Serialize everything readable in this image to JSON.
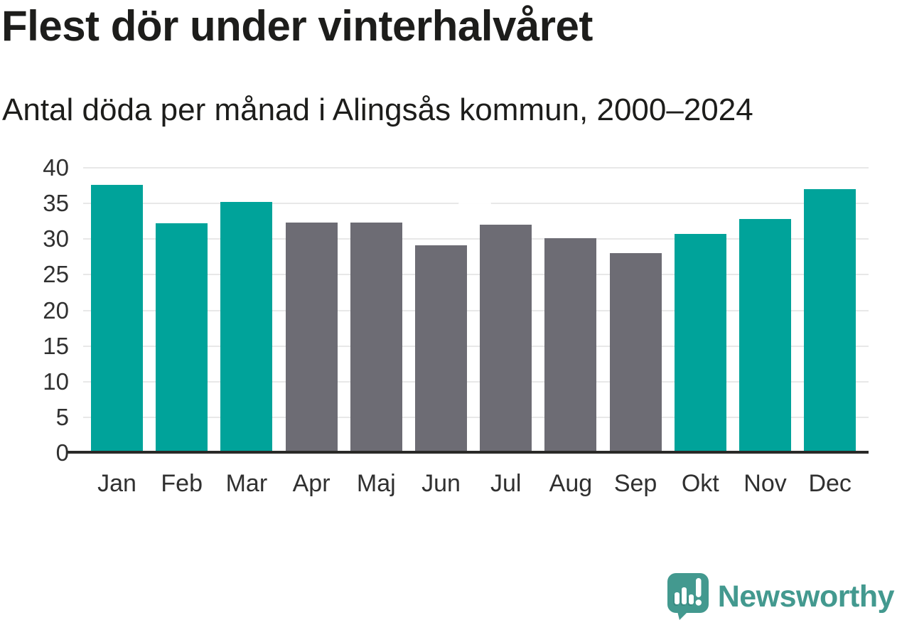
{
  "chart_data": {
    "type": "bar",
    "title": "Flest dör under vinterhalvåret",
    "subtitle": "Antal döda per månad i Alingsås kommun, 2000–2024",
    "categories": [
      "Jan",
      "Feb",
      "Mar",
      "Apr",
      "Maj",
      "Jun",
      "Jul",
      "Aug",
      "Sep",
      "Okt",
      "Nov",
      "Dec"
    ],
    "values": [
      37.6,
      32.2,
      35.2,
      32.3,
      32.3,
      29.1,
      32.0,
      30.1,
      28.0,
      30.7,
      32.8,
      37.0
    ],
    "bar_colors": [
      "#00a39a",
      "#00a39a",
      "#00a39a",
      "#6d6c74",
      "#6d6c74",
      "#6d6c74",
      "#6d6c74",
      "#6d6c74",
      "#6d6c74",
      "#00a39a",
      "#00a39a",
      "#00a39a"
    ],
    "xlabel": "",
    "ylabel": "",
    "ylim": [
      0,
      40
    ],
    "yticks": [
      0,
      5,
      10,
      15,
      20,
      25,
      30,
      35,
      40
    ],
    "grid": true,
    "legend_position": "none"
  },
  "colors": {
    "winter_teal": "#00a39a",
    "summer_gray": "#6d6c74",
    "gridline": "#e8e8e8",
    "axis_line": "#2a2a28",
    "text": "#1d1d1b",
    "brand_teal": "#43998f"
  },
  "footer": {
    "brand": "Newsworthy"
  }
}
